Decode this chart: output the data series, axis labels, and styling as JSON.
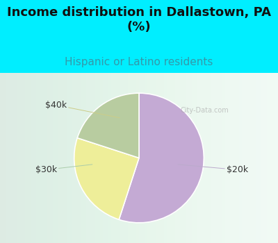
{
  "title": "Income distribution in Dallastown, PA\n(%)",
  "subtitle": "Hispanic or Latino residents",
  "labels": [
    "$20k",
    "$40k",
    "$30k"
  ],
  "sizes": [
    55,
    25,
    20
  ],
  "colors": [
    "#c4aad4",
    "#eeee99",
    "#b8cca0"
  ],
  "bg_cyan": "#00eeff",
  "bg_chart": "#e8f8f0",
  "title_color": "#111111",
  "subtitle_color": "#3399aa",
  "title_fontsize": 13,
  "subtitle_fontsize": 11,
  "label_fontsize": 9,
  "startangle": 90,
  "label_color": "#333333",
  "line_color_20k": "#bbaacc",
  "line_color_40k": "#cccc88",
  "line_color_30k": "#aaccaa"
}
